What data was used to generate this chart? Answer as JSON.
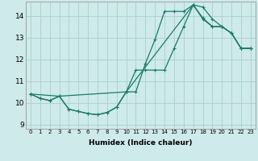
{
  "xlabel": "Humidex (Indice chaleur)",
  "bg_color": "#ceeaea",
  "grid_color": "#aacfcf",
  "line_color": "#1a7a6a",
  "xlim": [
    -0.5,
    23.5
  ],
  "ylim": [
    8.8,
    14.65
  ],
  "xticks": [
    0,
    1,
    2,
    3,
    4,
    5,
    6,
    7,
    8,
    9,
    10,
    11,
    12,
    13,
    14,
    15,
    16,
    17,
    18,
    19,
    20,
    21,
    22,
    23
  ],
  "yticks": [
    9,
    10,
    11,
    12,
    13,
    14
  ],
  "line1_x": [
    0,
    1,
    2,
    3,
    4,
    5,
    6,
    7,
    8,
    9,
    10,
    11,
    12,
    13,
    14,
    15,
    16,
    17,
    18,
    19,
    20,
    21,
    22,
    23
  ],
  "line1_y": [
    10.4,
    10.2,
    10.1,
    10.3,
    9.7,
    9.6,
    9.5,
    9.45,
    9.55,
    9.8,
    10.5,
    10.5,
    11.8,
    12.9,
    14.2,
    14.2,
    14.2,
    14.5,
    14.4,
    13.85,
    13.5,
    13.2,
    12.5,
    12.5
  ],
  "line2_x": [
    0,
    1,
    2,
    3,
    4,
    5,
    6,
    7,
    8,
    9,
    10,
    11,
    12,
    13,
    14,
    15,
    16,
    17,
    18,
    19,
    20,
    21,
    22,
    23
  ],
  "line2_y": [
    10.4,
    10.2,
    10.1,
    10.3,
    9.7,
    9.6,
    9.5,
    9.45,
    9.55,
    9.8,
    10.5,
    11.5,
    11.5,
    11.5,
    11.5,
    12.5,
    13.5,
    14.5,
    13.9,
    13.5,
    13.5,
    13.2,
    12.5,
    12.5
  ],
  "line3_x": [
    0,
    3,
    10,
    17,
    18,
    19,
    20,
    21,
    22,
    23
  ],
  "line3_y": [
    10.4,
    10.3,
    10.5,
    14.5,
    13.85,
    13.5,
    13.5,
    13.2,
    12.5,
    12.5
  ]
}
